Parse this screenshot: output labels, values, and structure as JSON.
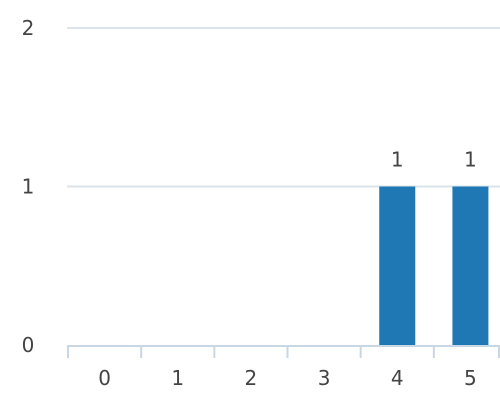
{
  "chart_data": {
    "type": "bar",
    "title": "",
    "xlabel": "",
    "ylabel": "",
    "categories": [
      "0",
      "1",
      "2",
      "3",
      "4",
      "5"
    ],
    "values": [
      0,
      0,
      0,
      0,
      1,
      1
    ],
    "data_labels": [
      "",
      "",
      "",
      "",
      "1",
      "1"
    ],
    "y_ticks": [
      "0",
      "1",
      "2"
    ],
    "ylim": [
      0,
      2
    ],
    "grid": true,
    "legend": "none",
    "bar_color": "#1f77b4",
    "grid_color": "#dde3ea",
    "axis_color": "#c9d6e3",
    "label_color": "#444444"
  }
}
